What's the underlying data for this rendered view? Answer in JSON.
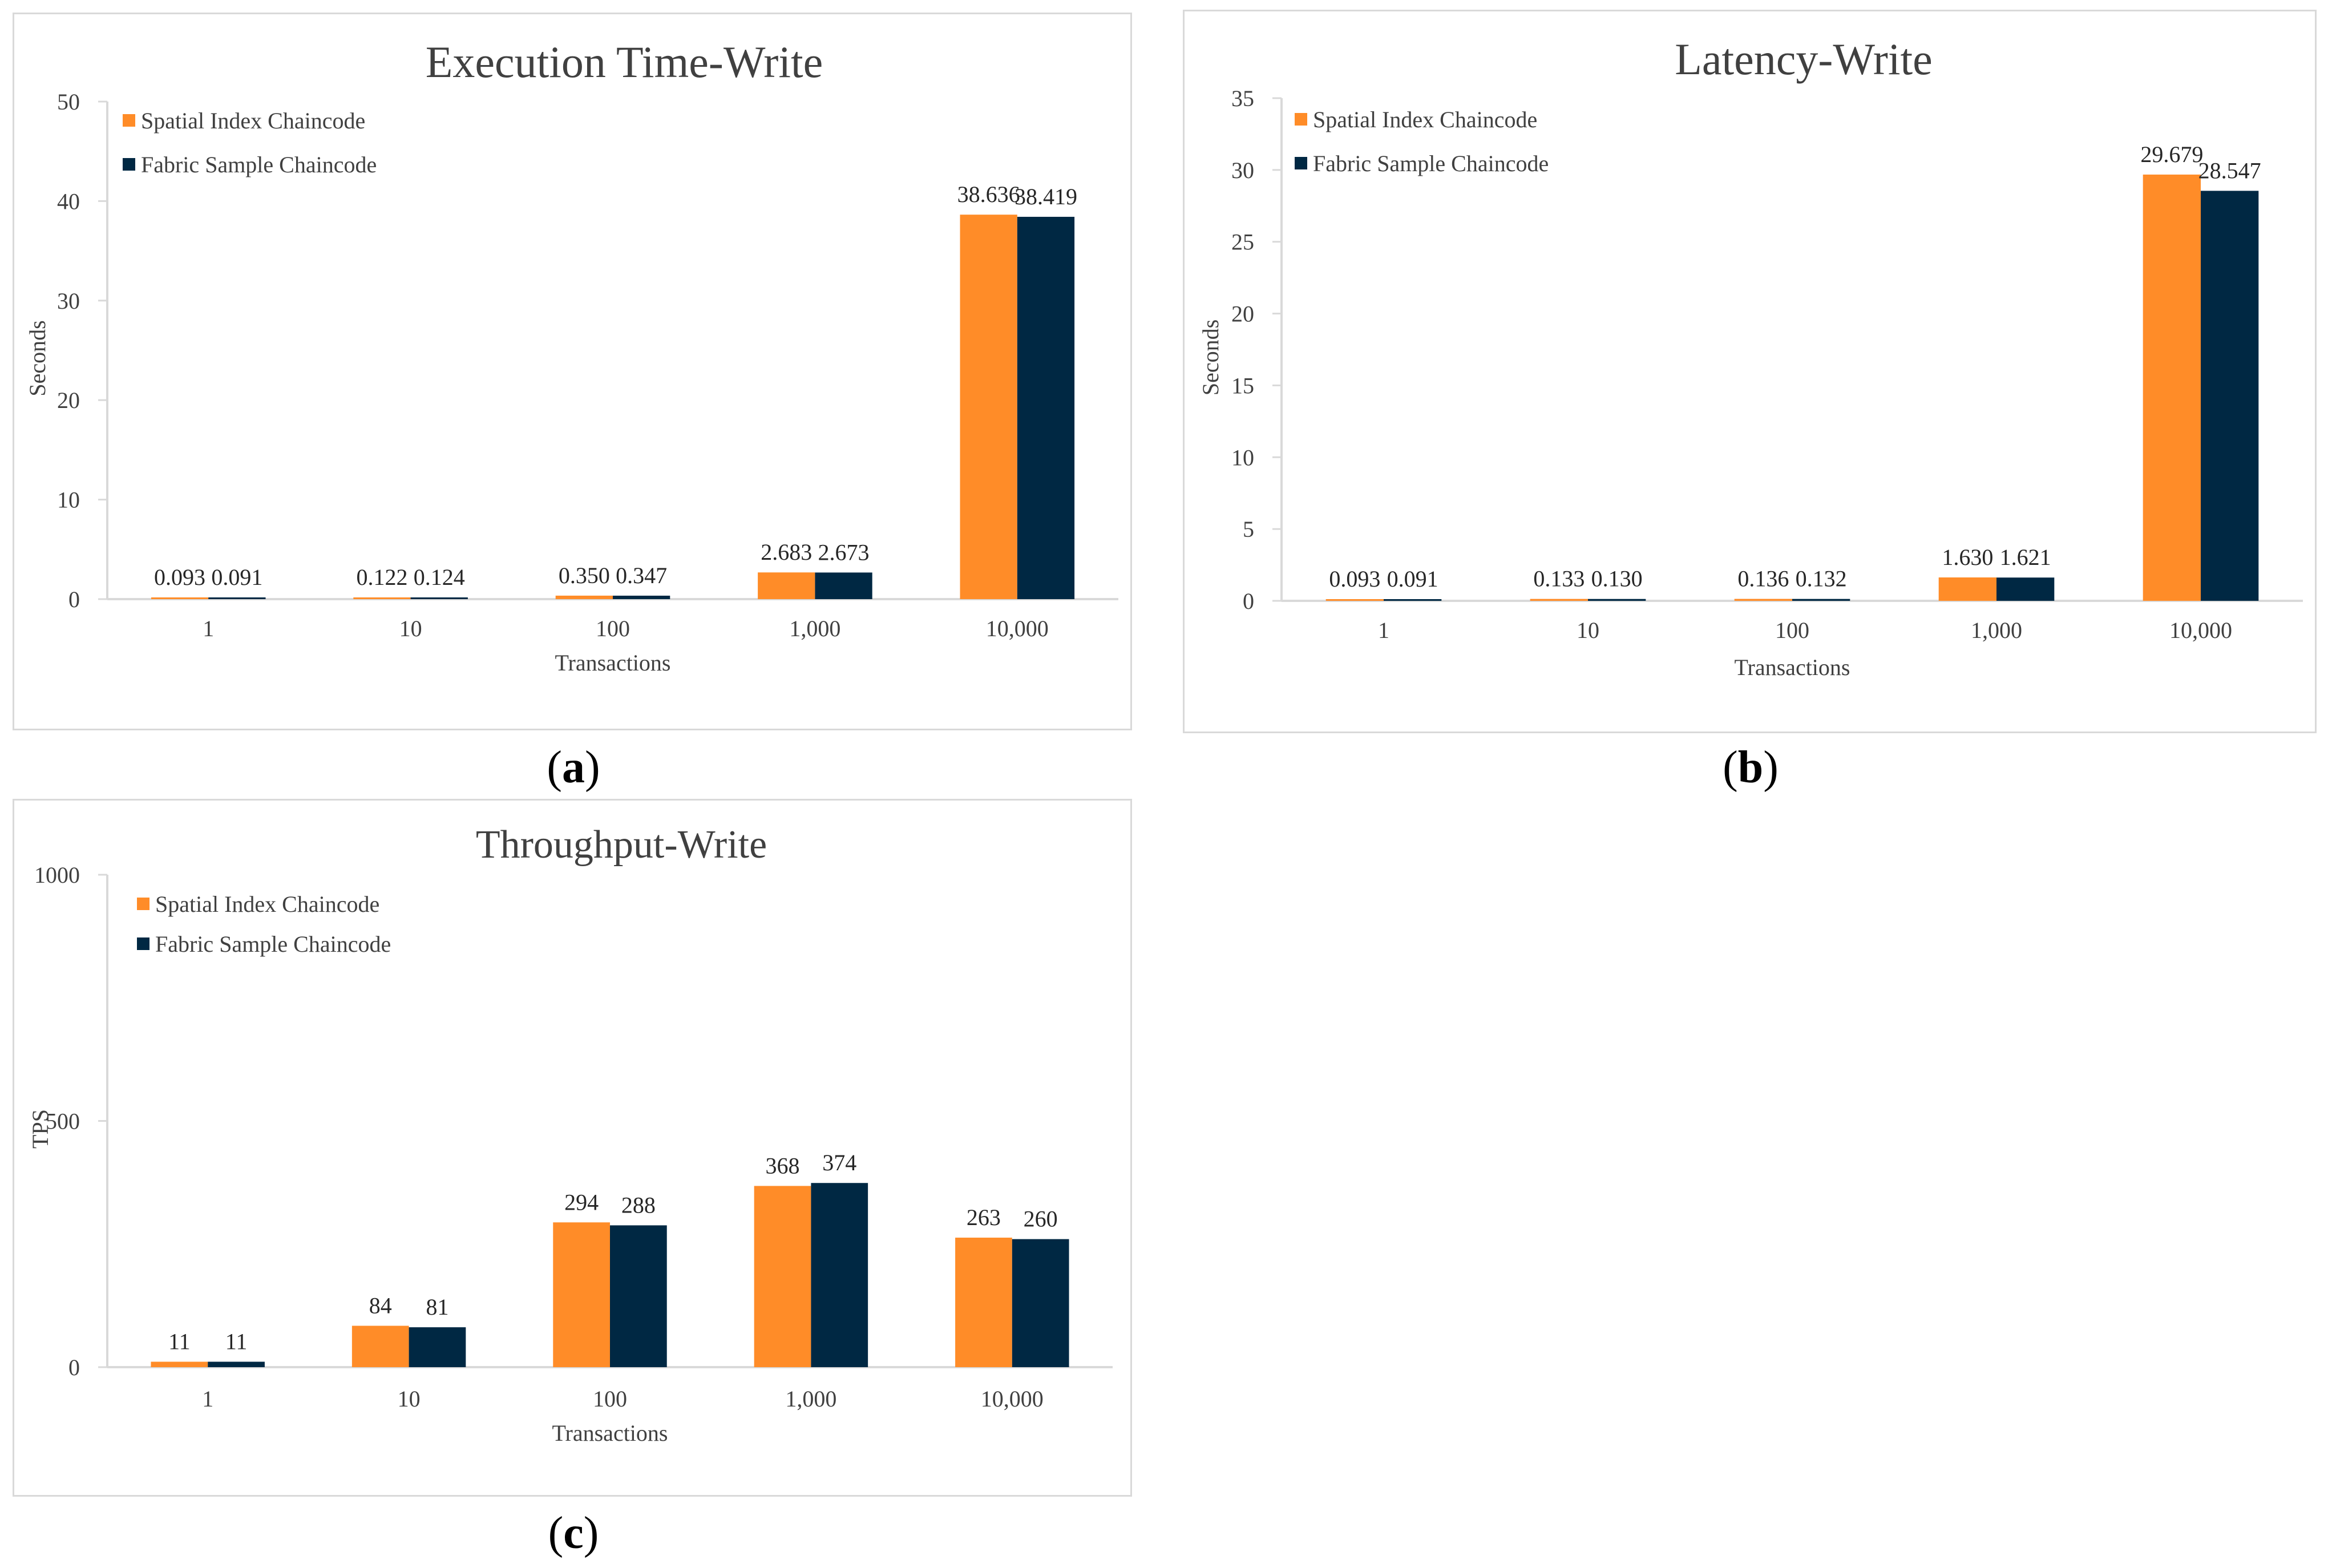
{
  "colors": {
    "series1": "#ff8c28",
    "series2": "#002843",
    "axis": "#d9d9d9",
    "text": "#404040"
  },
  "captions": {
    "a": "a",
    "b": "b",
    "c": "c"
  },
  "chart_data": [
    {
      "id": "a",
      "type": "bar",
      "title": "Execution Time-Write",
      "xlabel": "Transactions",
      "ylabel": "Seconds",
      "ylim": [
        0,
        50
      ],
      "yticks": [
        0,
        10,
        20,
        30,
        40,
        50
      ],
      "ytick_labels": [
        "0",
        "10",
        "20",
        "30",
        "40",
        "50"
      ],
      "categories": [
        "1",
        "10",
        "100",
        "1,000",
        "10,000"
      ],
      "legend": "top-left",
      "series": [
        {
          "name": "Spatial Index Chaincode",
          "values": [
            0.093,
            0.122,
            0.35,
            2.683,
            38.636
          ],
          "labels": [
            "0.093",
            "0.122",
            "0.350",
            "2.683",
            "38.636"
          ]
        },
        {
          "name": "Fabric Sample Chaincode",
          "values": [
            0.091,
            0.124,
            0.347,
            2.673,
            38.419
          ],
          "labels": [
            "0.091",
            "0.124",
            "0.347",
            "2.673",
            "38.419"
          ]
        }
      ]
    },
    {
      "id": "b",
      "type": "bar",
      "title": "Latency-Write",
      "xlabel": "Transactions",
      "ylabel": "Seconds",
      "ylim": [
        0,
        35
      ],
      "yticks": [
        0,
        5,
        10,
        15,
        20,
        25,
        30,
        35
      ],
      "ytick_labels": [
        "0",
        "5",
        "10",
        "15",
        "20",
        "25",
        "30",
        "35"
      ],
      "categories": [
        "1",
        "10",
        "100",
        "1,000",
        "10,000"
      ],
      "legend": "top-left",
      "series": [
        {
          "name": "Spatial Index Chaincode",
          "values": [
            0.093,
            0.133,
            0.136,
            1.63,
            29.679
          ],
          "labels": [
            "0.093",
            "0.133",
            "0.136",
            "1.630",
            "29.679"
          ]
        },
        {
          "name": "Fabric Sample Chaincode",
          "values": [
            0.091,
            0.13,
            0.132,
            1.621,
            28.547
          ],
          "labels": [
            "0.091",
            "0.130",
            "0.132",
            "1.621",
            "28.547"
          ]
        }
      ]
    },
    {
      "id": "c",
      "type": "bar",
      "title": "Throughput-Write",
      "xlabel": "Transactions",
      "ylabel": "TPS",
      "ylim": [
        0,
        1000
      ],
      "yticks": [
        0,
        500,
        1000
      ],
      "ytick_labels": [
        "0",
        "500",
        "1000"
      ],
      "categories": [
        "1",
        "10",
        "100",
        "1,000",
        "10,000"
      ],
      "legend": "top-left",
      "series": [
        {
          "name": "Spatial Index Chaincode",
          "values": [
            11,
            84,
            294,
            368,
            263
          ],
          "labels": [
            "11",
            "84",
            "294",
            "368",
            "263"
          ]
        },
        {
          "name": "Fabric Sample Chaincode",
          "values": [
            11,
            81,
            288,
            374,
            260
          ],
          "labels": [
            "11",
            "81",
            "288",
            "374",
            "260"
          ]
        }
      ]
    }
  ]
}
